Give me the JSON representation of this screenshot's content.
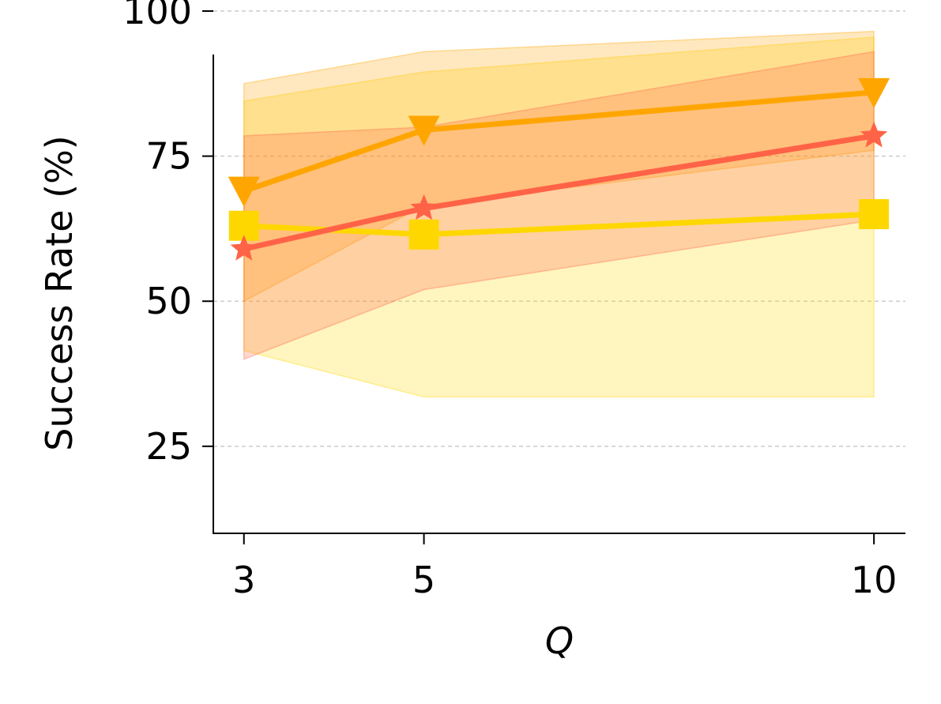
{
  "chart_data": {
    "type": "line",
    "title": "",
    "xlabel": "Q",
    "ylabel": "Success Rate (%)",
    "x": [
      3,
      5,
      10
    ],
    "x_ticks": [
      "3",
      "5",
      "10"
    ],
    "y_ticks": [
      "25",
      "50",
      "75",
      "100"
    ],
    "xlim": [
      2.66,
      10.35
    ],
    "ylim": [
      10,
      100
    ],
    "grid": "y-dashed",
    "legend": "none",
    "series": [
      {
        "marker": "square",
        "color": "#FFD700",
        "values": [
          63,
          61.5,
          65
        ],
        "band_low": [
          41.5,
          33.5,
          33.5
        ],
        "band_high": [
          84.5,
          89.5,
          95.5
        ]
      },
      {
        "marker": "triangle-down",
        "color": "#FFA500",
        "values": [
          69,
          79.5,
          86
        ],
        "band_low": [
          50,
          66.5,
          76
        ],
        "band_high": [
          87.5,
          93,
          96.5
        ]
      },
      {
        "marker": "star",
        "color": "#FF6347",
        "values": [
          59,
          66,
          78.5
        ],
        "band_low": [
          40,
          52,
          64
        ],
        "band_high": [
          78.5,
          80,
          93
        ]
      }
    ]
  }
}
